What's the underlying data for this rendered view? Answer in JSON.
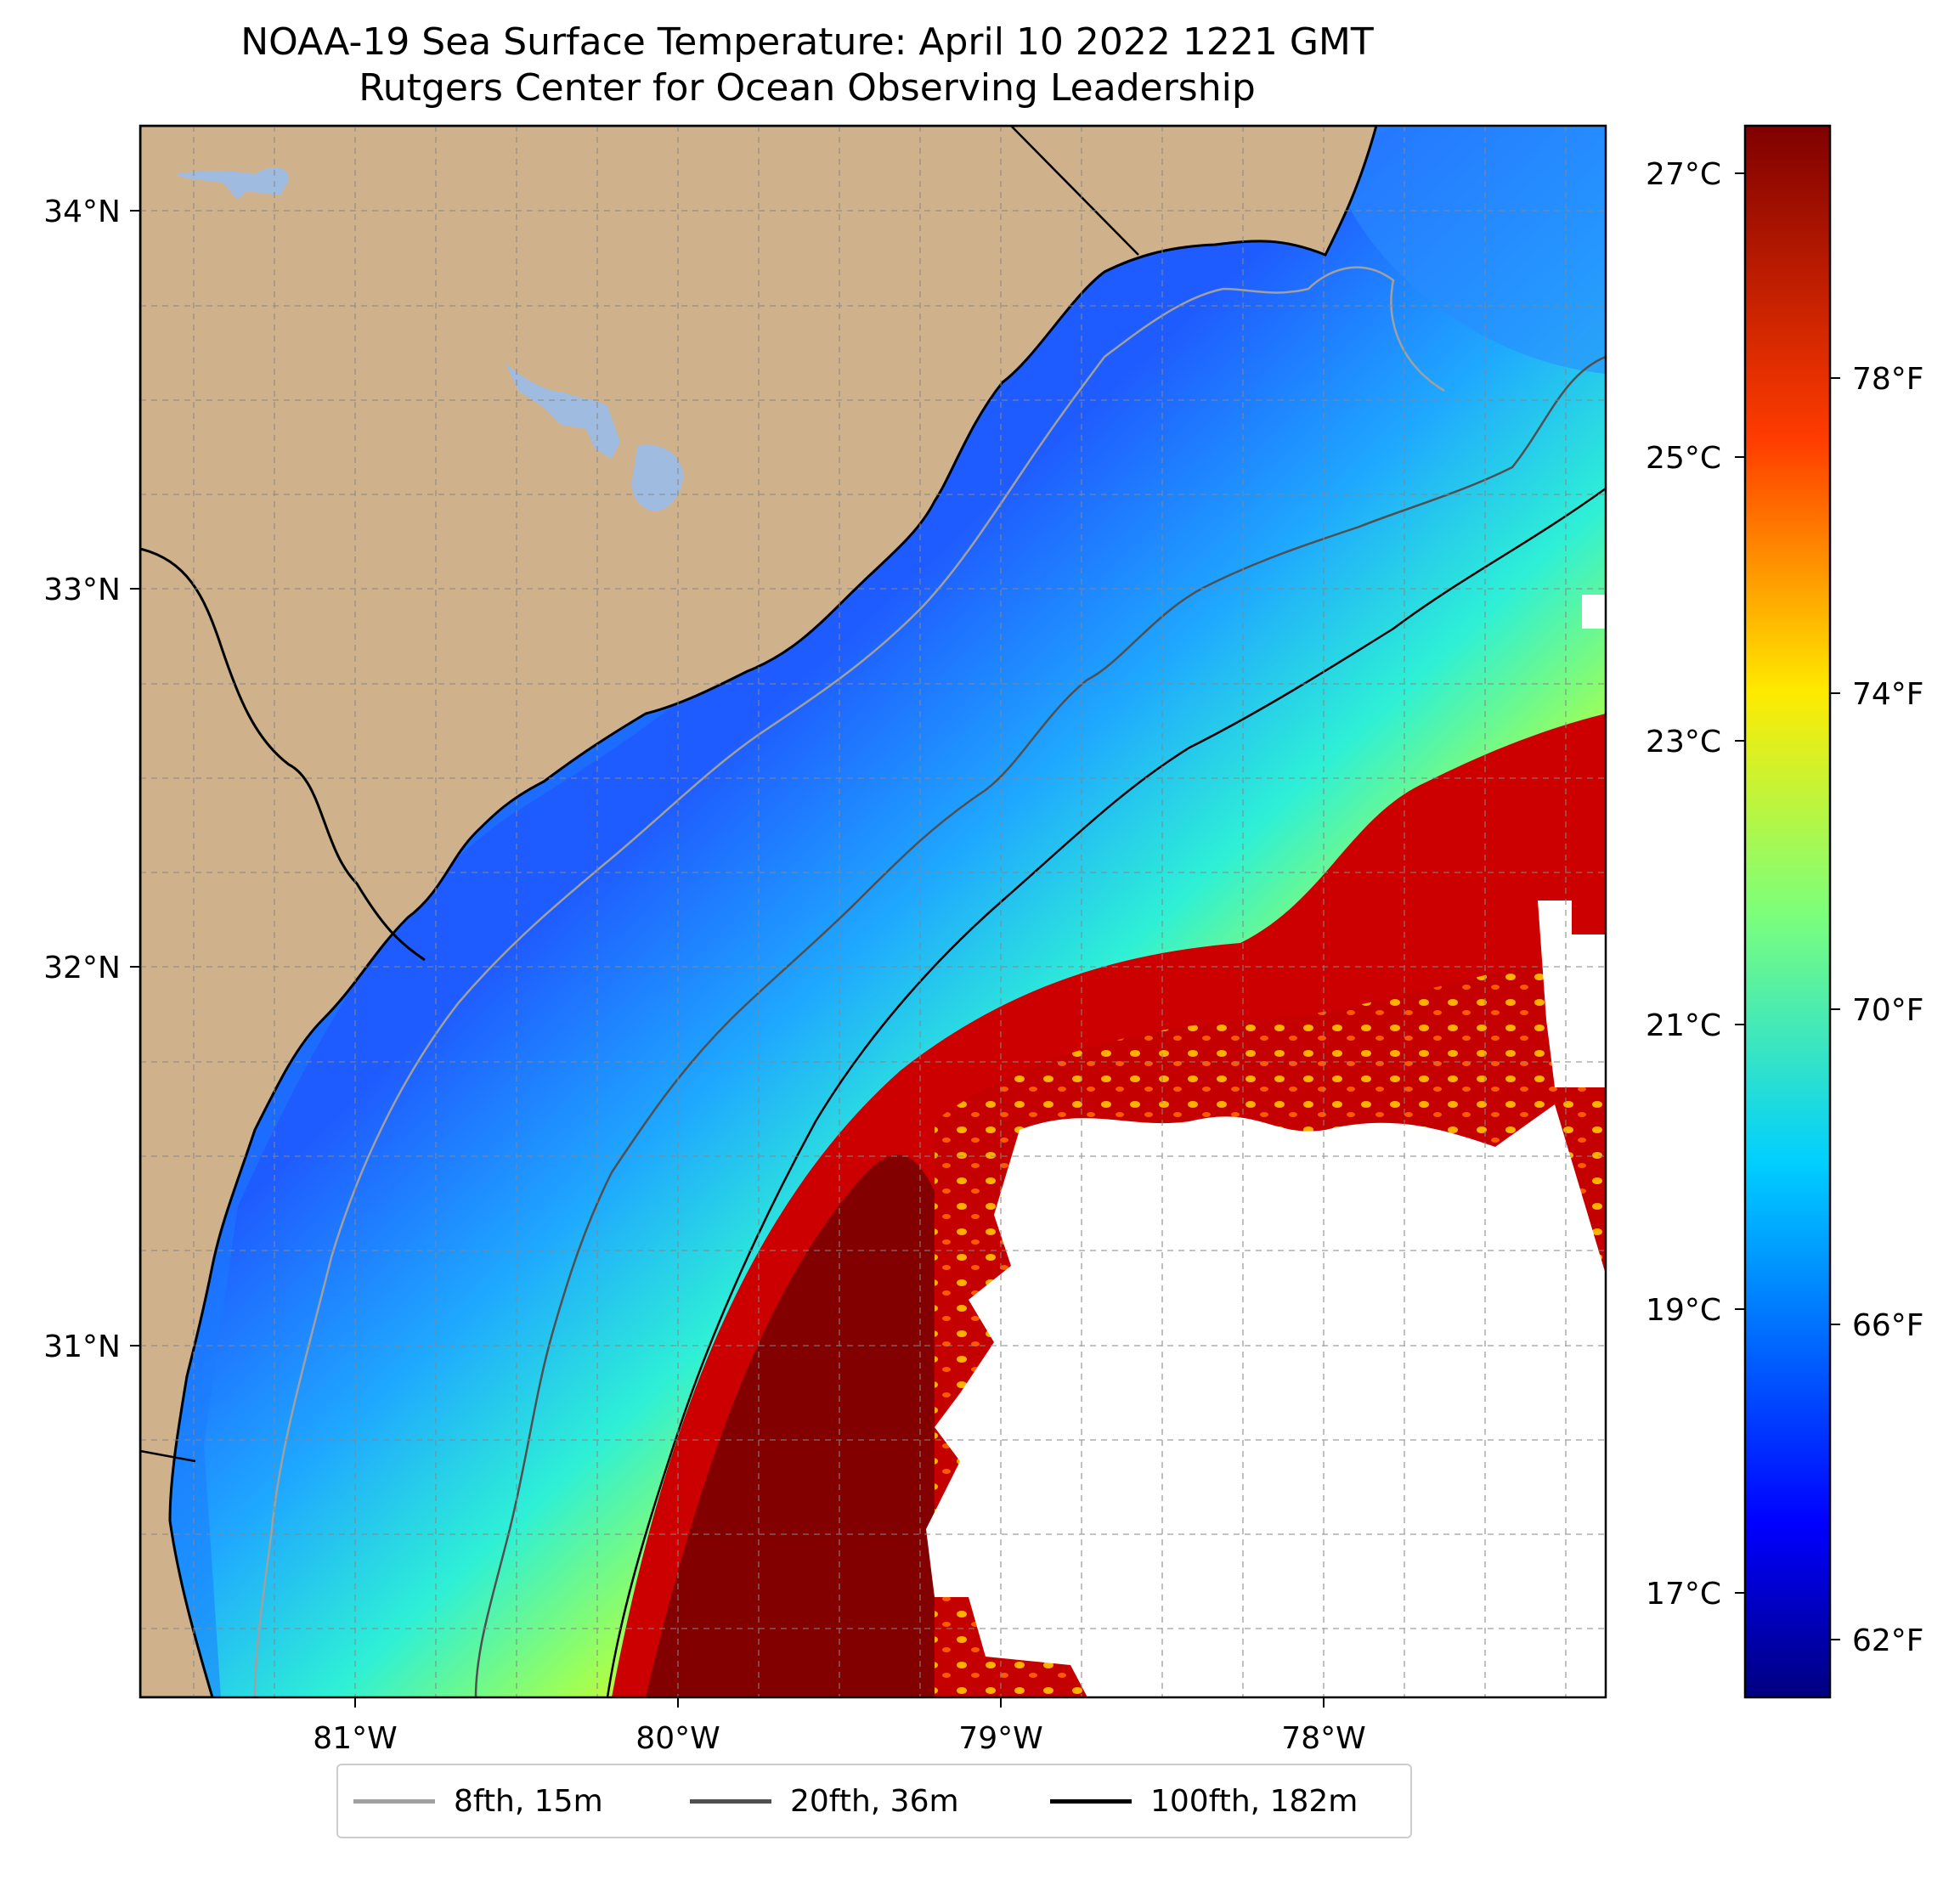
{
  "title_line1": "NOAA-19 Sea Surface Temperature: April 10 2022 1221 GMT",
  "title_line2": "Rutgers Center for Ocean Observing Leadership",
  "map": {
    "lon_ticks": [
      "81°W",
      "80°W",
      "79°W",
      "78°W"
    ],
    "lat_ticks": [
      "34°N",
      "33°N",
      "32°N",
      "31°N"
    ],
    "extent": {
      "lon": [
        -81.67,
        -77.12
      ],
      "lat": [
        30.07,
        34.22
      ]
    },
    "gridlines": "dashed",
    "land_color": "#cfb28b",
    "lake_color": "#a0bbe0",
    "no_data_color": "#ffffff"
  },
  "colorbar": {
    "celsius_ticks": [
      "27°C",
      "25°C",
      "23°C",
      "21°C",
      "19°C",
      "17°C"
    ],
    "fahrenheit_ticks": [
      "78°F",
      "74°F",
      "70°F",
      "66°F",
      "62°F"
    ],
    "colormap": "jet",
    "range_celsius": [
      16.0,
      27.3
    ]
  },
  "legend": [
    {
      "label": "8fth, 15m",
      "color": "#a0a0a0"
    },
    {
      "label": "20fth, 36m",
      "color": "#505050"
    },
    {
      "label": "100fth, 182m",
      "color": "#000000"
    }
  ]
}
